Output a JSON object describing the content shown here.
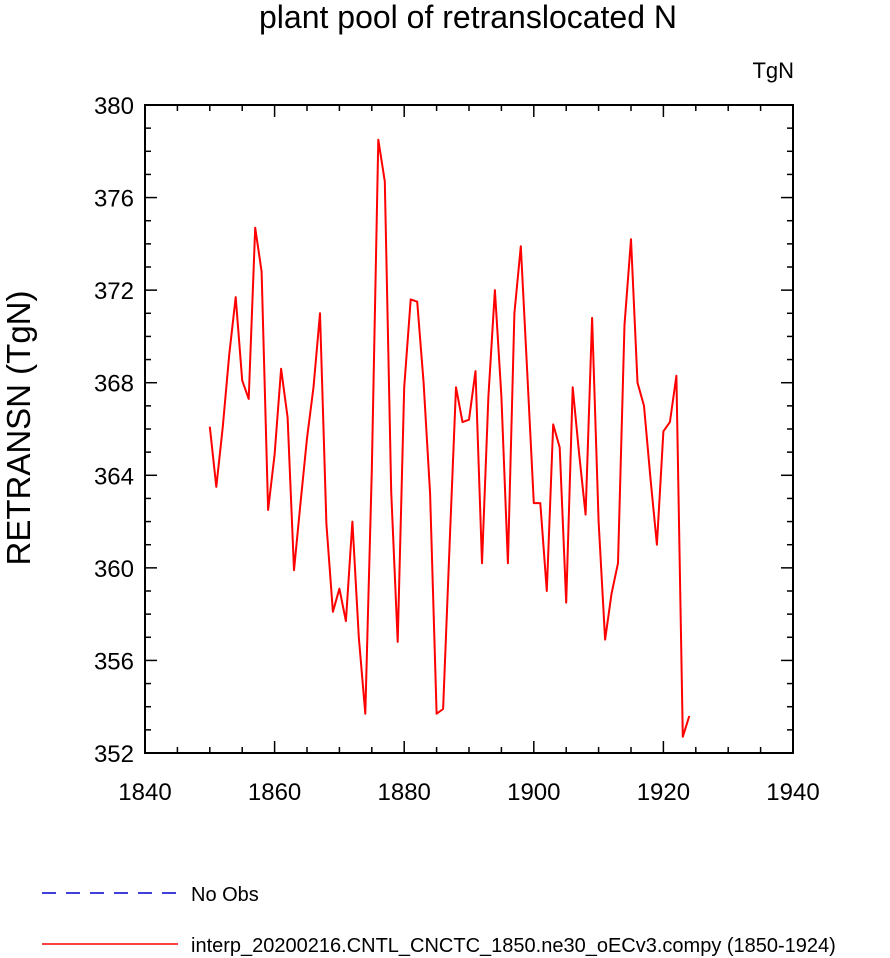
{
  "chart_data": {
    "type": "line",
    "title": "plant pool of retranslocated N",
    "units_label": "TgN",
    "ylabel": "RETRANSN  (TgN)",
    "xlabel": "",
    "xlim": [
      1840,
      1940
    ],
    "ylim": [
      352,
      380
    ],
    "x_ticks": [
      1840,
      1860,
      1880,
      1900,
      1920,
      1940
    ],
    "y_ticks": [
      352,
      356,
      360,
      364,
      368,
      372,
      376,
      380
    ],
    "x_minor_step": 5,
    "y_minor_step": 1,
    "grid": false,
    "legend_position": "bottom",
    "series": [
      {
        "name": "interp_20200216.CNTL_CNCTC_1850.ne30_oECv3.compy (1850-1924)",
        "color": "#ff0000",
        "dash": "solid",
        "x": [
          1850,
          1851,
          1852,
          1853,
          1854,
          1855,
          1856,
          1857,
          1858,
          1859,
          1860,
          1861,
          1862,
          1863,
          1864,
          1865,
          1866,
          1867,
          1868,
          1869,
          1870,
          1871,
          1872,
          1873,
          1874,
          1875,
          1876,
          1877,
          1878,
          1879,
          1880,
          1881,
          1882,
          1883,
          1884,
          1885,
          1886,
          1887,
          1888,
          1889,
          1890,
          1891,
          1892,
          1893,
          1894,
          1895,
          1896,
          1897,
          1898,
          1899,
          1900,
          1901,
          1902,
          1903,
          1904,
          1905,
          1906,
          1907,
          1908,
          1909,
          1910,
          1911,
          1912,
          1913,
          1914,
          1915,
          1916,
          1917,
          1918,
          1919,
          1920,
          1921,
          1922,
          1923,
          1924
        ],
        "values": [
          366.1,
          363.5,
          366.1,
          369.2,
          371.7,
          368.1,
          367.3,
          374.7,
          372.8,
          362.5,
          364.9,
          368.6,
          366.5,
          359.9,
          362.8,
          365.6,
          367.8,
          371.0,
          361.9,
          358.1,
          359.1,
          357.7,
          362.0,
          357.0,
          353.7,
          364.2,
          378.5,
          376.7,
          363.3,
          356.8,
          367.8,
          371.6,
          371.5,
          368.0,
          363.2,
          353.7,
          353.9,
          361.0,
          367.8,
          366.3,
          366.4,
          368.5,
          360.2,
          367.4,
          372.0,
          367.4,
          360.2,
          371.0,
          373.9,
          368.4,
          362.8,
          362.8,
          359.0,
          366.2,
          365.2,
          358.5,
          367.8,
          364.9,
          362.3,
          370.8,
          362.0,
          356.9,
          358.9,
          360.2,
          370.5,
          374.2,
          368.0,
          367.0,
          363.9,
          361.0,
          365.9,
          366.3,
          368.3,
          352.7,
          353.6
        ]
      },
      {
        "name": "No Obs",
        "color": "#0000cc",
        "dash": "dashed",
        "x": [],
        "values": []
      }
    ]
  }
}
